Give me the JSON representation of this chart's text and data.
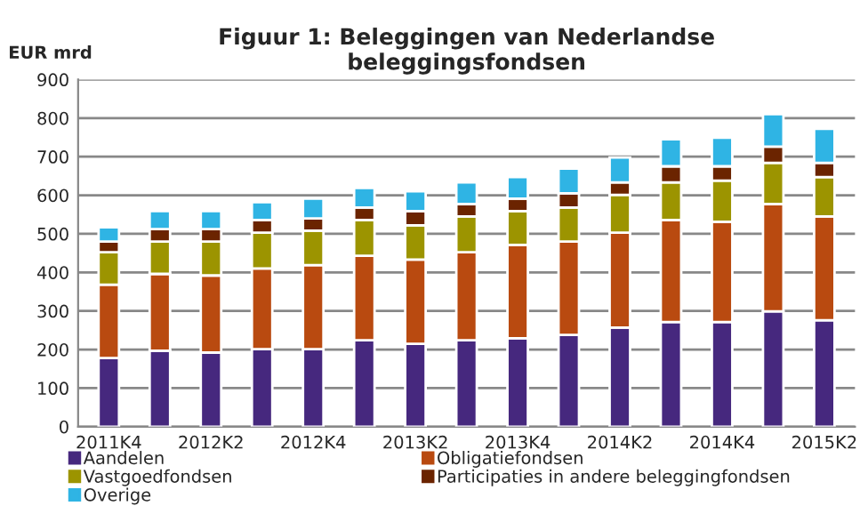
{
  "chart_data": {
    "type": "bar",
    "stacked": true,
    "title": "Figuur 1: Beleggingen van Nederlandse\nbeleggingsfondsen",
    "ylabel": "EUR mrd",
    "categories": [
      "2011K4",
      null,
      "2012K2",
      null,
      "2012K4",
      null,
      "2013K2",
      null,
      "2013K4",
      null,
      "2014K2",
      null,
      "2014K4",
      null,
      "2015K2"
    ],
    "series": [
      {
        "name": "Aandelen",
        "color": "#46287e",
        "values": [
          178,
          197,
          192,
          201,
          201,
          224,
          215,
          224,
          229,
          238,
          257,
          271,
          271,
          299,
          276
        ]
      },
      {
        "name": "Obligatiefondsen",
        "color": "#b94a10",
        "values": [
          190,
          199,
          200,
          209,
          218,
          219,
          218,
          228,
          242,
          242,
          246,
          265,
          260,
          278,
          269
        ]
      },
      {
        "name": "Vastgoedfondsen",
        "color": "#9c9400",
        "values": [
          84,
          84,
          88,
          93,
          89,
          93,
          89,
          93,
          88,
          88,
          98,
          97,
          107,
          107,
          102
        ]
      },
      {
        "name": "Participaties in andere beleggingfondsen",
        "color": "#6b2400",
        "values": [
          28,
          32,
          32,
          33,
          32,
          32,
          37,
          32,
          32,
          37,
          32,
          42,
          37,
          42,
          37
        ]
      },
      {
        "name": "Overige",
        "color": "#2fb4e4",
        "values": [
          37,
          47,
          47,
          46,
          51,
          51,
          51,
          56,
          56,
          64,
          65,
          70,
          74,
          84,
          88
        ]
      }
    ],
    "ylim": [
      0,
      900
    ],
    "yticks": [
      0,
      100,
      200,
      300,
      400,
      500,
      600,
      700,
      800,
      900
    ],
    "grid": "y",
    "legend": "bottom"
  }
}
